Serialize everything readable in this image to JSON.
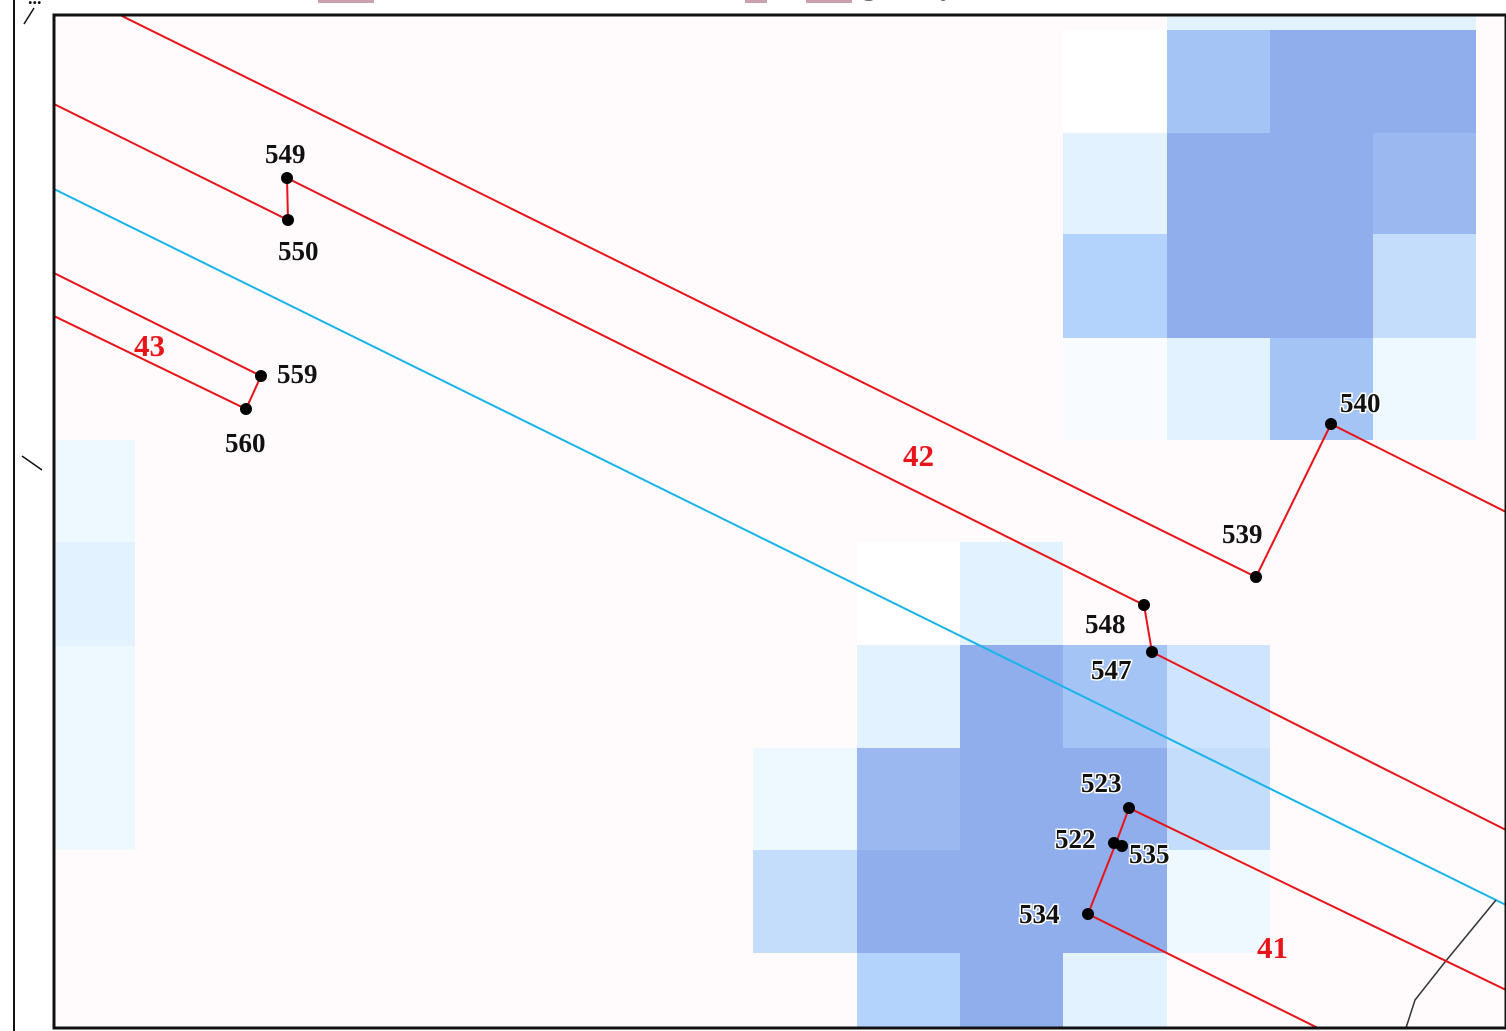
{
  "header": {
    "text": "...",
    "swatch_color": "#c9a0b0"
  },
  "colors": {
    "map_background": "#fffbfd",
    "parcel_line": "#e8141a",
    "river_line": "#1ab4ea",
    "point": "#000000",
    "label": "#111111",
    "parcel_label": "#e8141a",
    "raster_shades": [
      "#f8fbff",
      "#eef9ff",
      "#e2f2ff",
      "#cfe5ff",
      "#c4ddfb",
      "#b3d3fd",
      "#a5c4f6",
      "#9bb8f0",
      "#8faeeb"
    ]
  },
  "parcels": [
    {
      "id": "parcel-41",
      "label": "41"
    },
    {
      "id": "parcel-42",
      "label": "42"
    },
    {
      "id": "parcel-43",
      "label": "43"
    }
  ],
  "points": [
    {
      "id": "549",
      "label": "549"
    },
    {
      "id": "550",
      "label": "550"
    },
    {
      "id": "559",
      "label": "559"
    },
    {
      "id": "560",
      "label": "560"
    },
    {
      "id": "540",
      "label": "540"
    },
    {
      "id": "539",
      "label": "539"
    },
    {
      "id": "548",
      "label": "548"
    },
    {
      "id": "547",
      "label": "547"
    },
    {
      "id": "523",
      "label": "523"
    },
    {
      "id": "522",
      "label": "522"
    },
    {
      "id": "535",
      "label": "535"
    },
    {
      "id": "534",
      "label": "534"
    }
  ]
}
